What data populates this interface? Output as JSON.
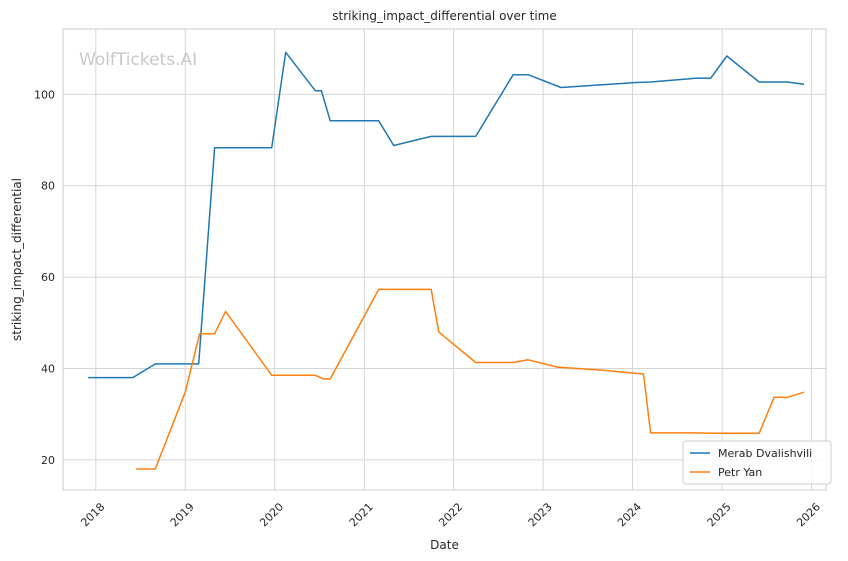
{
  "watermark": "WolfTickets.AI",
  "colors": {
    "series_0": "#1f77b4",
    "series_1": "#ff7f0e",
    "grid": "#d5d5d5",
    "frame": "#cccccc"
  },
  "chart_data": {
    "type": "line",
    "title": "striking_impact_differential over time",
    "xlabel": "Date",
    "ylabel": "striking_impact_differential",
    "xlim": [
      "2017-08-20",
      "2026-03-01"
    ],
    "ylim": [
      13.4,
      114.3
    ],
    "x_ticks": [
      "2018",
      "2019",
      "2020",
      "2021",
      "2022",
      "2023",
      "2024",
      "2025",
      "2026"
    ],
    "y_ticks": [
      20,
      40,
      60,
      80,
      100
    ],
    "grid": true,
    "legend_position": "lower-right",
    "series": [
      {
        "name": "Merab Dvalishvili",
        "points": [
          [
            "2017-12-01",
            38.0
          ],
          [
            "2018-06-01",
            38.0
          ],
          [
            "2018-09-01",
            41.0
          ],
          [
            "2019-02-25",
            41.0
          ],
          [
            "2019-05-01",
            88.3
          ],
          [
            "2019-12-20",
            88.3
          ],
          [
            "2020-02-15",
            109.2
          ],
          [
            "2020-06-15",
            100.8
          ],
          [
            "2020-07-10",
            100.8
          ],
          [
            "2020-08-15",
            94.2
          ],
          [
            "2021-03-01",
            94.2
          ],
          [
            "2021-05-01",
            88.8
          ],
          [
            "2021-10-01",
            90.8
          ],
          [
            "2022-04-01",
            90.8
          ],
          [
            "2022-09-01",
            104.3
          ],
          [
            "2022-11-01",
            104.3
          ],
          [
            "2023-03-15",
            101.5
          ],
          [
            "2024-01-15",
            102.6
          ],
          [
            "2024-03-15",
            102.7
          ],
          [
            "2024-09-15",
            103.5
          ],
          [
            "2024-11-15",
            103.5
          ],
          [
            "2025-01-20",
            108.4
          ],
          [
            "2025-06-01",
            102.7
          ],
          [
            "2025-09-25",
            102.7
          ],
          [
            "2025-12-01",
            102.2
          ]
        ]
      },
      {
        "name": "Petr Yan",
        "points": [
          [
            "2018-06-15",
            18.0
          ],
          [
            "2018-09-01",
            18.0
          ],
          [
            "2019-01-01",
            34.8
          ],
          [
            "2019-03-01",
            47.6
          ],
          [
            "2019-05-01",
            47.6
          ],
          [
            "2019-06-15",
            52.5
          ],
          [
            "2019-12-20",
            38.5
          ],
          [
            "2020-06-15",
            38.5
          ],
          [
            "2020-07-20",
            37.7
          ],
          [
            "2020-08-15",
            37.7
          ],
          [
            "2021-03-01",
            57.3
          ],
          [
            "2021-10-01",
            57.3
          ],
          [
            "2021-11-01",
            48.0
          ],
          [
            "2022-04-01",
            41.3
          ],
          [
            "2022-09-01",
            41.3
          ],
          [
            "2022-11-01",
            41.9
          ],
          [
            "2023-03-01",
            40.3
          ],
          [
            "2023-09-01",
            39.6
          ],
          [
            "2024-02-15",
            38.8
          ],
          [
            "2024-03-15",
            25.9
          ],
          [
            "2024-09-01",
            25.9
          ],
          [
            "2024-12-01",
            25.8
          ],
          [
            "2025-06-01",
            25.8
          ],
          [
            "2025-08-01",
            33.7
          ],
          [
            "2025-09-25",
            33.7
          ],
          [
            "2025-12-01",
            34.8
          ]
        ]
      }
    ]
  }
}
